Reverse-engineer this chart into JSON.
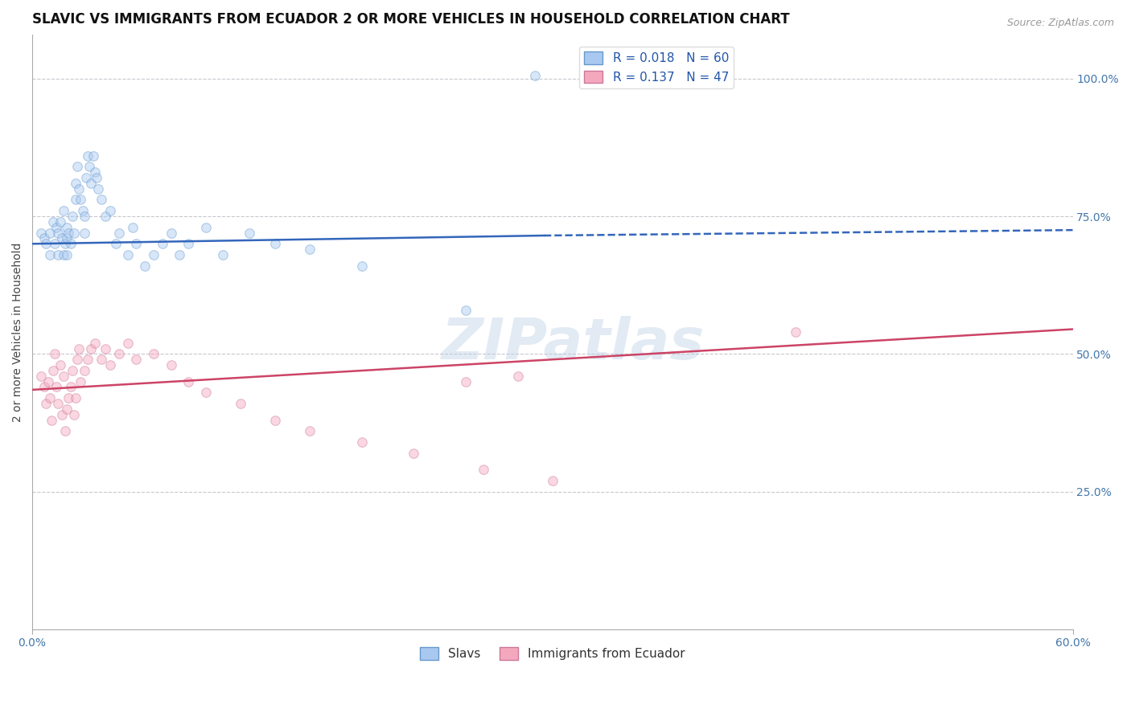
{
  "title": "SLAVIC VS IMMIGRANTS FROM ECUADOR 2 OR MORE VEHICLES IN HOUSEHOLD CORRELATION CHART",
  "source_text": "Source: ZipAtlas.com",
  "ylabel": "2 or more Vehicles in Household",
  "xlim": [
    0.0,
    0.6
  ],
  "ylim": [
    0.0,
    1.08
  ],
  "xticklabels": [
    "0.0%",
    "",
    "",
    "",
    "",
    "",
    "60.0%"
  ],
  "yticks_right": [
    0.25,
    0.5,
    0.75,
    1.0
  ],
  "ytick_labels_right": [
    "25.0%",
    "50.0%",
    "75.0%",
    "100.0%"
  ],
  "grid_color": "#c8c8d0",
  "background_color": "#ffffff",
  "watermark": "ZIPatlas",
  "slavs_color": "#a8c8f0",
  "slavs_edge_color": "#6699cc",
  "ecuador_color": "#f4a8be",
  "ecuador_edge_color": "#cc7799",
  "trend_slavs_color": "#3366bb",
  "trend_ecuador_color": "#cc4466",
  "slavs_x": [
    0.005,
    0.007,
    0.008,
    0.01,
    0.01,
    0.012,
    0.013,
    0.014,
    0.015,
    0.015,
    0.016,
    0.017,
    0.018,
    0.018,
    0.019,
    0.02,
    0.02,
    0.02,
    0.021,
    0.022,
    0.023,
    0.024,
    0.025,
    0.025,
    0.026,
    0.027,
    0.028,
    0.029,
    0.03,
    0.03,
    0.031,
    0.032,
    0.033,
    0.034,
    0.035,
    0.036,
    0.037,
    0.038,
    0.04,
    0.042,
    0.045,
    0.048,
    0.05,
    0.055,
    0.058,
    0.06,
    0.065,
    0.07,
    0.075,
    0.08,
    0.085,
    0.09,
    0.1,
    0.11,
    0.125,
    0.14,
    0.16,
    0.19,
    0.25,
    0.29
  ],
  "slavs_y": [
    0.72,
    0.71,
    0.7,
    0.72,
    0.68,
    0.74,
    0.7,
    0.73,
    0.68,
    0.72,
    0.74,
    0.71,
    0.68,
    0.76,
    0.7,
    0.68,
    0.71,
    0.73,
    0.72,
    0.7,
    0.75,
    0.72,
    0.78,
    0.81,
    0.84,
    0.8,
    0.78,
    0.76,
    0.75,
    0.72,
    0.82,
    0.86,
    0.84,
    0.81,
    0.86,
    0.83,
    0.82,
    0.8,
    0.78,
    0.75,
    0.76,
    0.7,
    0.72,
    0.68,
    0.73,
    0.7,
    0.66,
    0.68,
    0.7,
    0.72,
    0.68,
    0.7,
    0.73,
    0.68,
    0.72,
    0.7,
    0.69,
    0.66,
    0.58,
    1.005
  ],
  "ecuador_x": [
    0.005,
    0.007,
    0.008,
    0.009,
    0.01,
    0.011,
    0.012,
    0.013,
    0.014,
    0.015,
    0.016,
    0.017,
    0.018,
    0.019,
    0.02,
    0.021,
    0.022,
    0.023,
    0.024,
    0.025,
    0.026,
    0.027,
    0.028,
    0.03,
    0.032,
    0.034,
    0.036,
    0.04,
    0.042,
    0.045,
    0.05,
    0.055,
    0.06,
    0.07,
    0.08,
    0.09,
    0.1,
    0.12,
    0.14,
    0.16,
    0.19,
    0.22,
    0.26,
    0.3,
    0.25,
    0.28,
    0.44
  ],
  "ecuador_y": [
    0.46,
    0.44,
    0.41,
    0.45,
    0.42,
    0.38,
    0.47,
    0.5,
    0.44,
    0.41,
    0.48,
    0.39,
    0.46,
    0.36,
    0.4,
    0.42,
    0.44,
    0.47,
    0.39,
    0.42,
    0.49,
    0.51,
    0.45,
    0.47,
    0.49,
    0.51,
    0.52,
    0.49,
    0.51,
    0.48,
    0.5,
    0.52,
    0.49,
    0.5,
    0.48,
    0.45,
    0.43,
    0.41,
    0.38,
    0.36,
    0.34,
    0.32,
    0.29,
    0.27,
    0.45,
    0.46,
    0.54
  ],
  "title_fontsize": 12,
  "axis_label_fontsize": 10,
  "tick_fontsize": 10,
  "legend_fontsize": 11,
  "source_fontsize": 9,
  "marker_size": 70,
  "marker_alpha": 0.45,
  "trend_linewidth": 1.8,
  "trend_slavs_x0": 0.0,
  "trend_slavs_y0": 0.7,
  "trend_slavs_x1": 0.295,
  "trend_slavs_y1": 0.715,
  "trend_slavs_dash_x0": 0.295,
  "trend_slavs_dash_y0": 0.715,
  "trend_slavs_dash_x1": 0.6,
  "trend_slavs_dash_y1": 0.725,
  "trend_ecuador_x0": 0.0,
  "trend_ecuador_y0": 0.435,
  "trend_ecuador_x1": 0.6,
  "trend_ecuador_y1": 0.545
}
